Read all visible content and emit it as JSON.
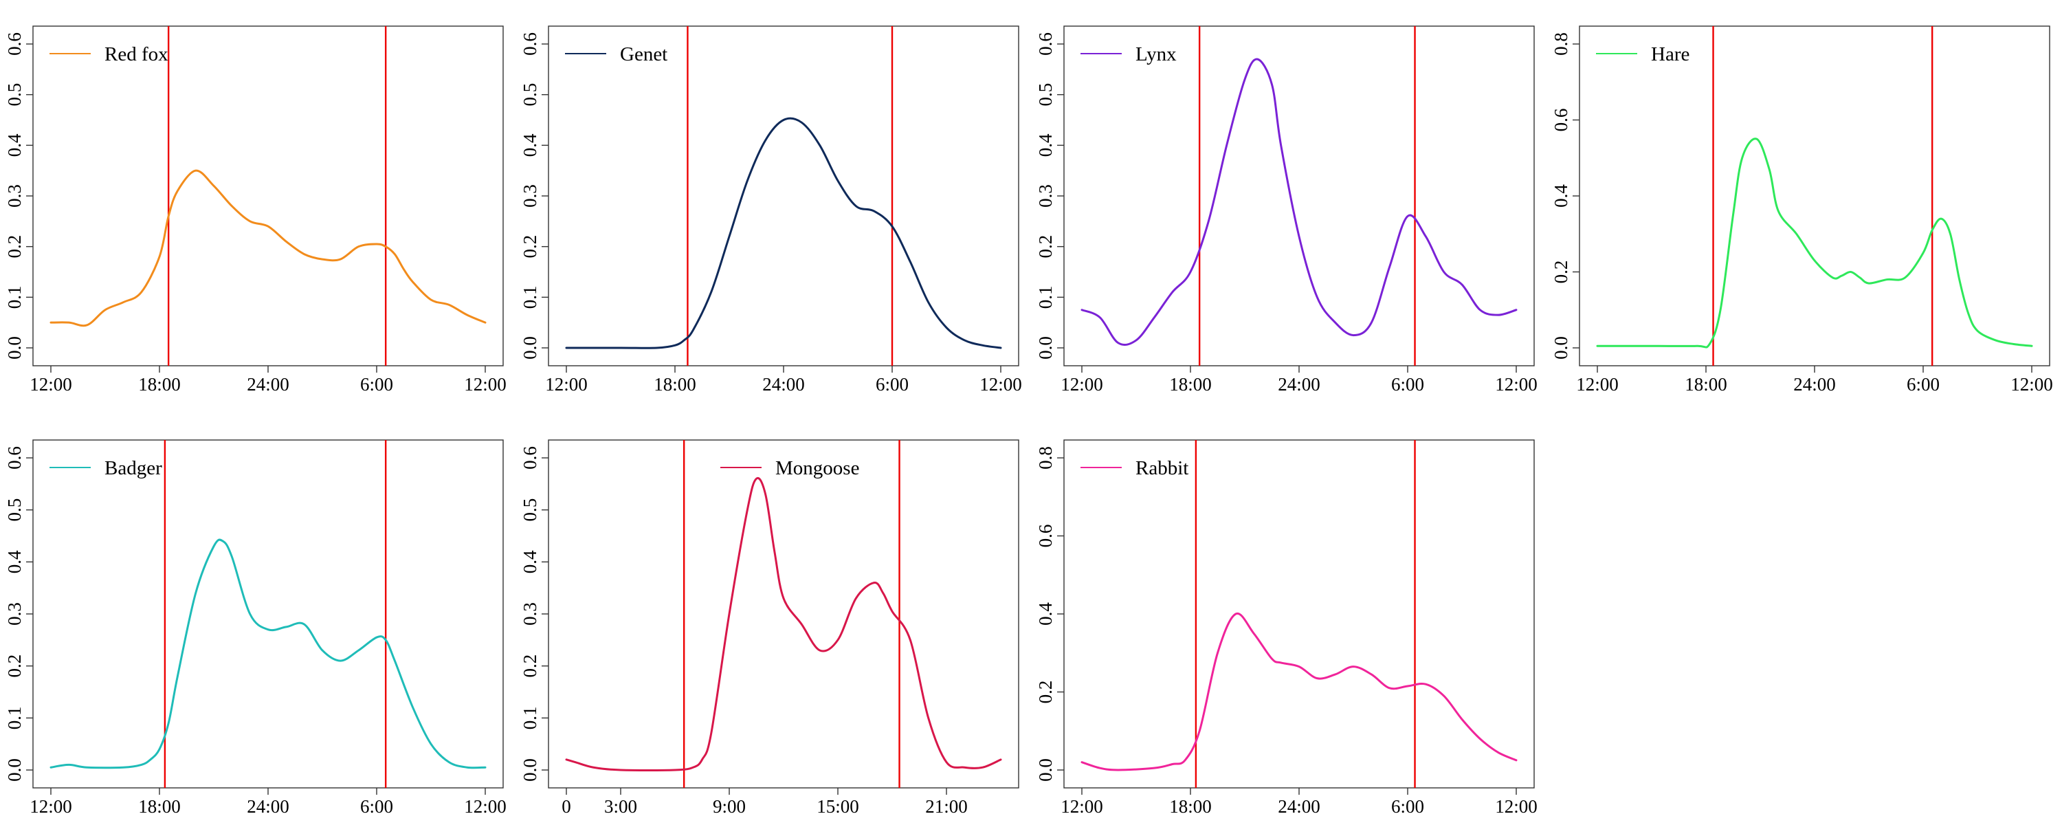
{
  "chart_data": [
    {
      "type": "line",
      "series": [
        {
          "name": "Red fox",
          "color": "#f28c1c"
        }
      ],
      "x": [
        0,
        1,
        2,
        3,
        4,
        5,
        6,
        6.5,
        7,
        8,
        9,
        10,
        11,
        12,
        13,
        14,
        15,
        16,
        17,
        18,
        18.5,
        19,
        19.5,
        20,
        21,
        22,
        23,
        24
      ],
      "y": [
        0.05,
        0.05,
        0.045,
        0.075,
        0.09,
        0.11,
        0.18,
        0.26,
        0.31,
        0.35,
        0.32,
        0.28,
        0.25,
        0.24,
        0.21,
        0.185,
        0.175,
        0.175,
        0.2,
        0.205,
        0.2,
        0.185,
        0.155,
        0.13,
        0.095,
        0.085,
        0.065,
        0.05
      ],
      "x_tick_labels": [
        "12:00",
        "18:00",
        "24:00",
        "6:00",
        "12:00"
      ],
      "x_tick_values": [
        0,
        6,
        12,
        18,
        24
      ],
      "xlim": [
        0,
        24
      ],
      "ylim": [
        0,
        0.6
      ],
      "y_ticks": [
        0.0,
        0.1,
        0.2,
        0.3,
        0.4,
        0.5,
        0.6
      ],
      "y_tick_labels": [
        "0.0",
        "0.1",
        "0.2",
        "0.3",
        "0.4",
        "0.5",
        "0.6"
      ],
      "vlines": [
        6.5,
        18.5
      ],
      "grid": false,
      "legend": "top-left"
    },
    {
      "type": "line",
      "series": [
        {
          "name": "Genet",
          "color": "#0f2a5a"
        }
      ],
      "x": [
        0,
        3,
        5,
        6,
        6.5,
        7,
        8,
        9,
        10,
        11,
        12,
        13,
        14,
        15,
        16,
        17,
        18,
        19,
        20,
        21,
        22,
        23,
        24
      ],
      "y": [
        0,
        0,
        0,
        0.005,
        0.015,
        0.035,
        0.11,
        0.22,
        0.33,
        0.41,
        0.45,
        0.445,
        0.4,
        0.33,
        0.28,
        0.27,
        0.24,
        0.17,
        0.09,
        0.04,
        0.015,
        0.005,
        0
      ],
      "x_tick_labels": [
        "12:00",
        "18:00",
        "24:00",
        "6:00",
        "12:00"
      ],
      "x_tick_values": [
        0,
        6,
        12,
        18,
        24
      ],
      "xlim": [
        0,
        24
      ],
      "ylim": [
        0,
        0.6
      ],
      "y_ticks": [
        0.0,
        0.1,
        0.2,
        0.3,
        0.4,
        0.5,
        0.6
      ],
      "y_tick_labels": [
        "0.0",
        "0.1",
        "0.2",
        "0.3",
        "0.4",
        "0.5",
        "0.6"
      ],
      "vlines": [
        6.7,
        18
      ],
      "grid": false,
      "legend": "top-left"
    },
    {
      "type": "line",
      "series": [
        {
          "name": "Lynx",
          "color": "#7a22d6"
        }
      ],
      "x": [
        0,
        1,
        2,
        3,
        4,
        5,
        6,
        7,
        8,
        9,
        9.7,
        10.5,
        11,
        12,
        13,
        14,
        15,
        16,
        17,
        18,
        19,
        20,
        21,
        22,
        23,
        24
      ],
      "y": [
        0.075,
        0.06,
        0.01,
        0.015,
        0.06,
        0.11,
        0.15,
        0.25,
        0.4,
        0.53,
        0.57,
        0.52,
        0.4,
        0.22,
        0.1,
        0.05,
        0.025,
        0.05,
        0.16,
        0.26,
        0.22,
        0.15,
        0.125,
        0.075,
        0.065,
        0.075
      ],
      "x_tick_labels": [
        "12:00",
        "18:00",
        "24:00",
        "6:00",
        "12:00"
      ],
      "x_tick_values": [
        0,
        6,
        12,
        18,
        24
      ],
      "xlim": [
        0,
        24
      ],
      "ylim": [
        0,
        0.6
      ],
      "y_ticks": [
        0.0,
        0.1,
        0.2,
        0.3,
        0.4,
        0.5,
        0.6
      ],
      "y_tick_labels": [
        "0.0",
        "0.1",
        "0.2",
        "0.3",
        "0.4",
        "0.5",
        "0.6"
      ],
      "vlines": [
        6.5,
        18.4
      ],
      "grid": false,
      "legend": "top-left"
    },
    {
      "type": "line",
      "series": [
        {
          "name": "Hare",
          "color": "#2ee85a"
        }
      ],
      "x": [
        0,
        3,
        5.5,
        6.2,
        6.8,
        7.5,
        8,
        8.8,
        9.5,
        10,
        11,
        12,
        13,
        13.5,
        14,
        14.5,
        15,
        16,
        17,
        18,
        18.5,
        19,
        19.5,
        20,
        20.5,
        21,
        22,
        23,
        24
      ],
      "y": [
        0.005,
        0.005,
        0.005,
        0.01,
        0.1,
        0.35,
        0.5,
        0.55,
        0.47,
        0.36,
        0.3,
        0.23,
        0.185,
        0.19,
        0.2,
        0.185,
        0.17,
        0.18,
        0.185,
        0.25,
        0.31,
        0.34,
        0.3,
        0.18,
        0.09,
        0.045,
        0.02,
        0.01,
        0.005
      ],
      "x_tick_labels": [
        "12:00",
        "18:00",
        "24:00",
        "6:00",
        "12:00"
      ],
      "x_tick_values": [
        0,
        6,
        12,
        18,
        24
      ],
      "xlim": [
        0,
        24
      ],
      "ylim": [
        0,
        0.8
      ],
      "y_ticks": [
        0.0,
        0.2,
        0.4,
        0.6,
        0.8
      ],
      "y_tick_labels": [
        "0.0",
        "0.2",
        "0.4",
        "0.6",
        "0.8"
      ],
      "vlines": [
        6.4,
        18.5
      ],
      "grid": false,
      "legend": "top-left"
    },
    {
      "type": "line",
      "series": [
        {
          "name": "Badger",
          "color": "#1fbcb8"
        }
      ],
      "x": [
        0,
        1,
        2,
        4,
        5,
        5.5,
        6,
        6.5,
        7,
        8,
        9,
        9.5,
        10,
        11,
        12,
        13,
        14,
        15,
        16,
        17,
        18,
        18.5,
        19,
        20,
        21,
        22,
        23,
        24
      ],
      "y": [
        0.005,
        0.01,
        0.005,
        0.005,
        0.01,
        0.02,
        0.04,
        0.09,
        0.18,
        0.34,
        0.43,
        0.44,
        0.41,
        0.3,
        0.27,
        0.275,
        0.28,
        0.23,
        0.21,
        0.23,
        0.255,
        0.25,
        0.21,
        0.12,
        0.05,
        0.015,
        0.005,
        0.005
      ],
      "x_tick_labels": [
        "12:00",
        "18:00",
        "24:00",
        "6:00",
        "12:00"
      ],
      "x_tick_values": [
        0,
        6,
        12,
        18,
        24
      ],
      "xlim": [
        0,
        24
      ],
      "ylim": [
        0,
        0.6
      ],
      "y_ticks": [
        0.0,
        0.1,
        0.2,
        0.3,
        0.4,
        0.5,
        0.6
      ],
      "y_tick_labels": [
        "0.0",
        "0.1",
        "0.2",
        "0.3",
        "0.4",
        "0.5",
        "0.6"
      ],
      "vlines": [
        6.3,
        18.5
      ],
      "grid": false,
      "legend": "top-left"
    },
    {
      "type": "line",
      "series": [
        {
          "name": "Mongoose",
          "color": "#d8174a"
        }
      ],
      "x": [
        0,
        0.5,
        1.5,
        3,
        6,
        7,
        7.5,
        8,
        9,
        10,
        10.5,
        11,
        11.5,
        12,
        13,
        14,
        15,
        16,
        17,
        17.5,
        18,
        19,
        20,
        21,
        22,
        23,
        24
      ],
      "y": [
        0.02,
        0.015,
        0.005,
        0,
        0,
        0.005,
        0.02,
        0.07,
        0.3,
        0.5,
        0.56,
        0.53,
        0.42,
        0.33,
        0.28,
        0.23,
        0.25,
        0.33,
        0.36,
        0.34,
        0.305,
        0.25,
        0.1,
        0.015,
        0.005,
        0.005,
        0.02
      ],
      "x_tick_labels": [
        "0",
        "3:00",
        "9:00",
        "15:00",
        "21:00"
      ],
      "x_tick_values": [
        0,
        3,
        9,
        15,
        21
      ],
      "xlim": [
        0,
        24
      ],
      "ylim": [
        0,
        0.6
      ],
      "y_ticks": [
        0.0,
        0.1,
        0.2,
        0.3,
        0.4,
        0.5,
        0.6
      ],
      "y_tick_labels": [
        "0.0",
        "0.1",
        "0.2",
        "0.3",
        "0.4",
        "0.5",
        "0.6"
      ],
      "vlines": [
        6.5,
        18.4
      ],
      "grid": false,
      "legend": "top-center"
    },
    {
      "type": "line",
      "series": [
        {
          "name": "Rabbit",
          "color": "#f0249a"
        }
      ],
      "x": [
        0,
        1,
        2,
        4,
        5,
        5.7,
        6.5,
        7.5,
        8.5,
        9.5,
        10.5,
        11,
        12,
        13,
        14,
        15,
        16,
        17,
        18,
        19,
        20,
        21,
        22,
        23,
        24
      ],
      "y": [
        0.02,
        0.005,
        0,
        0.005,
        0.015,
        0.025,
        0.1,
        0.3,
        0.4,
        0.35,
        0.285,
        0.275,
        0.265,
        0.235,
        0.245,
        0.265,
        0.245,
        0.21,
        0.215,
        0.22,
        0.19,
        0.13,
        0.08,
        0.045,
        0.025
      ],
      "x_tick_labels": [
        "12:00",
        "18:00",
        "24:00",
        "6:00",
        "12:00"
      ],
      "x_tick_values": [
        0,
        6,
        12,
        18,
        24
      ],
      "xlim": [
        0,
        24
      ],
      "ylim": [
        0,
        0.8
      ],
      "y_ticks": [
        0.0,
        0.2,
        0.4,
        0.6,
        0.8
      ],
      "y_tick_labels": [
        "0.0",
        "0.2",
        "0.4",
        "0.6",
        "0.8"
      ],
      "vlines": [
        6.3,
        18.4
      ],
      "grid": false,
      "legend": "top-left"
    }
  ]
}
